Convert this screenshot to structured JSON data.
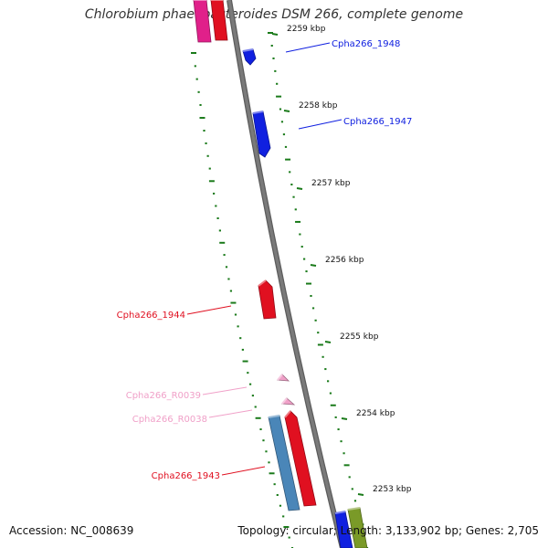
{
  "title": "Chlorobium phaeobacteroides DSM 266, complete genome",
  "footer": {
    "accession": "Accession: NC_008639",
    "topology": "Topology: circular; Length: 3,133,902 bp; Genes: 2,705"
  },
  "colors": {
    "backbone": "#7a7a7a",
    "tick": "#1a7a1a",
    "tick_label": "#111111",
    "gene_red": "#e01020",
    "gene_blue": "#1020e0",
    "gene_steelblue": "#4a86b8",
    "gene_pink": "#f0a0c8",
    "gene_magenta": "#e0208a",
    "gene_olive": "#7a9a28"
  },
  "position_ticks": [
    {
      "label": "2259 kbp"
    },
    {
      "label": "2258 kbp"
    },
    {
      "label": "2257 kbp"
    },
    {
      "label": "2256 kbp"
    },
    {
      "label": "2255 kbp"
    },
    {
      "label": "2254 kbp"
    },
    {
      "label": "2253 kbp"
    }
  ],
  "genes": [
    {
      "locus_tag": "Cpha266_1948",
      "color": "#1020e0"
    },
    {
      "locus_tag": "Cpha266_1947",
      "color": "#1020e0"
    },
    {
      "locus_tag": "Cpha266_1944",
      "color": "#e01020"
    },
    {
      "locus_tag": "Cpha266_R0039",
      "color": "#f0a0c8"
    },
    {
      "locus_tag": "Cpha266_R0038",
      "color": "#f0a0c8"
    },
    {
      "locus_tag": "Cpha266_1943",
      "color": "#e01020"
    }
  ],
  "unlabeled_features": [
    {
      "name": "feature-top-magenta",
      "color": "#e0208a"
    },
    {
      "name": "feature-top-red",
      "color": "#e01020"
    },
    {
      "name": "feature-bottom-blue",
      "color": "#1020e0"
    },
    {
      "name": "feature-bottom-olive",
      "color": "#7a9a28"
    },
    {
      "name": "feature-steelblue",
      "color": "#4a86b8"
    },
    {
      "name": "feature-red-long",
      "color": "#e01020"
    }
  ]
}
